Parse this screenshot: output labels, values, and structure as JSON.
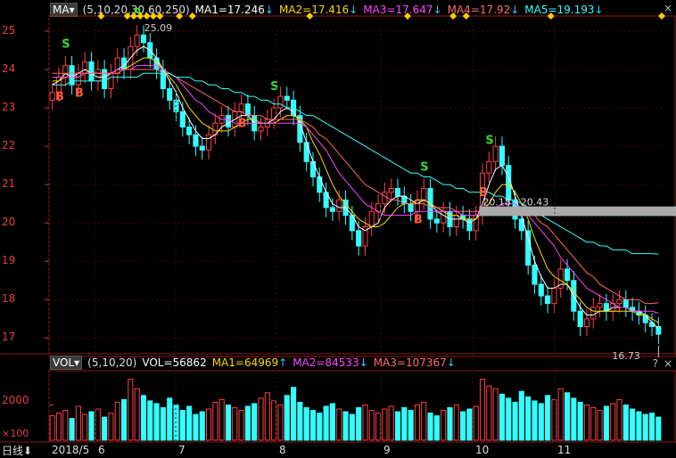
{
  "price_panel": {
    "ma_selector": "MA",
    "ma_params": "(5,10,20,30,60,250)",
    "ma_values": [
      {
        "label": "MA1=17.246",
        "color": "#ffffff",
        "arrow": "↓"
      },
      {
        "label": "MA2=17.416",
        "color": "#ffd700",
        "arrow": "↓"
      },
      {
        "label": "MA3=17.647",
        "color": "#ff44ff",
        "arrow": "↓"
      },
      {
        "label": "MA4=17.92",
        "color": "#ff6a6a",
        "arrow": "↓"
      },
      {
        "label": "MA5=19.193",
        "color": "#33ffff",
        "arrow": "↓"
      }
    ],
    "close_button": "×",
    "high_label": "25.09",
    "low_label": "16.73",
    "range_label": "20.18 - 20.43",
    "y_ticks": [
      "25",
      "24",
      "23",
      "22",
      "21",
      "20",
      "19",
      "18",
      "17"
    ]
  },
  "volume_panel": {
    "selector": "VOL",
    "params": "(5,10,20)",
    "values": [
      {
        "label": "VOL=56862",
        "color": "#ffffff",
        "arrow": ""
      },
      {
        "label": "MA1=64969",
        "color": "#ffd700",
        "arrow": "↑"
      },
      {
        "label": "MA2=84533",
        "color": "#ff44ff",
        "arrow": "↓"
      },
      {
        "label": "MA3=107367",
        "color": "#ff6a6a",
        "arrow": "↓"
      }
    ],
    "help_button": "?",
    "close_button": "×",
    "y_tick": "2000",
    "unit": "×100"
  },
  "bottom_bar": {
    "period": "日线",
    "period_arrow": "⬇",
    "x_ticks": [
      "2018/5",
      "6",
      "7",
      "8",
      "9",
      "10",
      "11"
    ]
  },
  "signals": {
    "buy": "B",
    "sell": "S"
  },
  "chart_data": {
    "type": "candlestick",
    "ylim": [
      16.8,
      25.3
    ],
    "price_series": [
      23.4,
      23.8,
      24.1,
      23.6,
      23.9,
      24.2,
      23.7,
      24.0,
      23.5,
      23.9,
      24.3,
      24.0,
      24.6,
      24.9,
      24.7,
      24.3,
      24.0,
      23.5,
      23.2,
      22.9,
      22.5,
      22.3,
      22.0,
      21.9,
      22.3,
      22.6,
      22.8,
      22.5,
      22.9,
      23.1,
      22.8,
      22.4,
      22.5,
      22.7,
      23.0,
      23.3,
      23.2,
      22.8,
      22.1,
      21.6,
      21.2,
      20.8,
      20.4,
      20.3,
      20.6,
      20.2,
      19.8,
      19.4,
      19.9,
      20.3,
      20.5,
      20.8,
      20.9,
      20.7,
      20.5,
      20.3,
      20.6,
      20.9,
      20.1,
      20.0,
      20.3,
      19.9,
      20.2,
      20.1,
      19.8,
      20.2,
      21.3,
      21.6,
      22.0,
      21.5,
      20.6,
      20.1,
      19.8,
      18.9,
      18.4,
      18.1,
      17.9,
      18.3,
      18.8,
      18.5,
      17.7,
      17.3,
      17.5,
      17.8,
      17.9,
      17.7,
      17.9,
      18.0,
      17.8,
      17.7,
      17.6,
      17.4,
      17.3,
      17.1
    ],
    "ma_lines": {
      "MA1": [
        23.6,
        23.7,
        23.9,
        23.8,
        23.9,
        24.0,
        23.9,
        23.8,
        23.8,
        23.9,
        24.0,
        24.1,
        24.3,
        24.5,
        24.6,
        24.5,
        24.3,
        24.0,
        23.7,
        23.4,
        23.0,
        22.7,
        22.4,
        22.2,
        22.2,
        22.3,
        22.5,
        22.6,
        22.7,
        22.8,
        22.8,
        22.6,
        22.6,
        22.6,
        22.7,
        22.9,
        23.0,
        22.9,
        22.6,
        22.1,
        21.6,
        21.2,
        20.8,
        20.5,
        20.4,
        20.4,
        20.2,
        19.9,
        19.8,
        19.9,
        20.0,
        20.4,
        20.6,
        20.7,
        20.7,
        20.6,
        20.5,
        20.6,
        20.5,
        20.3,
        20.2,
        20.1,
        20.1,
        20.1,
        20.0,
        20.1,
        20.5,
        21.0,
        21.4,
        21.5,
        21.2,
        20.7,
        20.2,
        19.6,
        19.0,
        18.6,
        18.3,
        18.3,
        18.4,
        18.4,
        18.1,
        17.8,
        17.6,
        17.6,
        17.7,
        17.7,
        17.8,
        17.8,
        17.8,
        17.7,
        17.7,
        17.6,
        17.4,
        17.25
      ],
      "MA2": [
        23.7,
        23.7,
        23.8,
        23.8,
        23.8,
        23.9,
        23.9,
        23.9,
        23.9,
        23.9,
        24.0,
        24.0,
        24.1,
        24.2,
        24.3,
        24.3,
        24.2,
        24.0,
        23.8,
        23.6,
        23.3,
        23.0,
        22.8,
        22.6,
        22.5,
        22.4,
        22.4,
        22.4,
        22.5,
        22.6,
        22.7,
        22.7,
        22.6,
        22.6,
        22.6,
        22.7,
        22.8,
        22.8,
        22.7,
        22.5,
        22.1,
        21.8,
        21.4,
        21.0,
        20.7,
        20.5,
        20.3,
        20.1,
        20.0,
        19.9,
        19.9,
        20.0,
        20.2,
        20.4,
        20.5,
        20.5,
        20.6,
        20.6,
        20.5,
        20.4,
        20.3,
        20.2,
        20.2,
        20.1,
        20.1,
        20.1,
        20.3,
        20.5,
        20.8,
        21.0,
        21.0,
        20.8,
        20.5,
        20.1,
        19.6,
        19.2,
        18.8,
        18.6,
        18.5,
        18.4,
        18.2,
        18.0,
        17.8,
        17.7,
        17.7,
        17.7,
        17.7,
        17.7,
        17.7,
        17.7,
        17.6,
        17.6,
        17.5,
        17.4
      ],
      "MA3": [
        23.8,
        23.8,
        23.8,
        23.8,
        23.8,
        23.9,
        23.9,
        23.9,
        23.9,
        23.9,
        24.0,
        24.0,
        24.0,
        24.1,
        24.1,
        24.1,
        24.1,
        24.0,
        23.9,
        23.8,
        23.6,
        23.4,
        23.2,
        23.1,
        22.9,
        22.8,
        22.7,
        22.7,
        22.6,
        22.6,
        22.6,
        22.6,
        22.6,
        22.6,
        22.6,
        22.6,
        22.6,
        22.6,
        22.6,
        22.5,
        22.3,
        22.1,
        21.9,
        21.6,
        21.3,
        21.1,
        20.9,
        20.7,
        20.5,
        20.4,
        20.3,
        20.2,
        20.2,
        20.2,
        20.2,
        20.2,
        20.3,
        20.3,
        20.3,
        20.3,
        20.3,
        20.3,
        20.3,
        20.2,
        20.2,
        20.2,
        20.3,
        20.3,
        20.4,
        20.5,
        20.5,
        20.5,
        20.4,
        20.2,
        20.0,
        19.8,
        19.6,
        19.4,
        19.1,
        18.9,
        18.7,
        18.5,
        18.3,
        18.2,
        18.1,
        18.0,
        17.9,
        17.8,
        17.8,
        17.7,
        17.7,
        17.7,
        17.7,
        17.65
      ],
      "MA4": [
        23.9,
        23.9,
        23.9,
        23.9,
        23.9,
        23.9,
        23.9,
        23.9,
        23.9,
        23.9,
        23.9,
        24.0,
        24.0,
        24.0,
        24.0,
        24.0,
        24.0,
        23.9,
        23.9,
        23.8,
        23.7,
        23.6,
        23.5,
        23.4,
        23.3,
        23.2,
        23.1,
        23.0,
        22.9,
        22.9,
        22.8,
        22.8,
        22.8,
        22.7,
        22.7,
        22.7,
        22.7,
        22.7,
        22.7,
        22.6,
        22.5,
        22.3,
        22.2,
        22.0,
        21.8,
        21.6,
        21.4,
        21.2,
        21.0,
        20.9,
        20.8,
        20.7,
        20.6,
        20.6,
        20.5,
        20.5,
        20.5,
        20.5,
        20.4,
        20.4,
        20.4,
        20.4,
        20.3,
        20.3,
        20.3,
        20.3,
        20.3,
        20.3,
        20.4,
        20.4,
        20.4,
        20.4,
        20.4,
        20.3,
        20.2,
        20.0,
        19.9,
        19.7,
        19.5,
        19.3,
        19.1,
        18.9,
        18.7,
        18.6,
        18.4,
        18.3,
        18.2,
        18.1,
        18.0,
        18.0,
        18.0,
        17.9,
        17.9,
        17.92
      ],
      "MA5": [
        23.6,
        23.6,
        23.6,
        23.7,
        23.7,
        23.7,
        23.7,
        23.7,
        23.7,
        23.8,
        23.8,
        23.8,
        23.8,
        23.8,
        23.9,
        23.9,
        23.9,
        23.9,
        23.9,
        23.8,
        23.8,
        23.8,
        23.7,
        23.7,
        23.6,
        23.6,
        23.5,
        23.5,
        23.4,
        23.4,
        23.3,
        23.3,
        23.2,
        23.2,
        23.1,
        23.1,
        23.0,
        23.0,
        22.9,
        22.8,
        22.8,
        22.7,
        22.6,
        22.5,
        22.4,
        22.3,
        22.2,
        22.1,
        22.0,
        21.9,
        21.8,
        21.7,
        21.6,
        21.5,
        21.4,
        21.3,
        21.3,
        21.2,
        21.2,
        21.1,
        21.0,
        21.0,
        20.9,
        20.9,
        20.8,
        20.8,
        20.8,
        20.8,
        20.7,
        20.7,
        20.6,
        20.6,
        20.5,
        20.4,
        20.3,
        20.2,
        20.1,
        20.0,
        19.9,
        19.8,
        19.7,
        19.6,
        19.5,
        19.5,
        19.4,
        19.4,
        19.3,
        19.3,
        19.3,
        19.2,
        19.2,
        19.2,
        19.2,
        19.19
      ]
    },
    "volume": [
      18,
      20,
      22,
      16,
      25,
      19,
      21,
      23,
      17,
      20,
      28,
      30,
      45,
      38,
      33,
      29,
      27,
      24,
      31,
      26,
      22,
      25,
      19,
      21,
      23,
      28,
      30,
      26,
      24,
      22,
      25,
      27,
      31,
      35,
      29,
      26,
      33,
      39,
      28,
      24,
      22,
      20,
      25,
      27,
      23,
      21,
      19,
      24,
      26,
      22,
      20,
      23,
      25,
      21,
      24,
      22,
      26,
      28,
      20,
      18,
      22,
      24,
      26,
      21,
      23,
      25,
      45,
      40,
      38,
      34,
      31,
      28,
      36,
      32,
      29,
      27,
      33,
      30,
      38,
      35,
      31,
      28,
      26,
      24,
      22,
      25,
      27,
      30,
      26,
      23,
      21,
      19,
      20,
      17
    ],
    "x_ticks": [
      "2018/5",
      "6",
      "7",
      "8",
      "9",
      "10",
      "11"
    ]
  }
}
